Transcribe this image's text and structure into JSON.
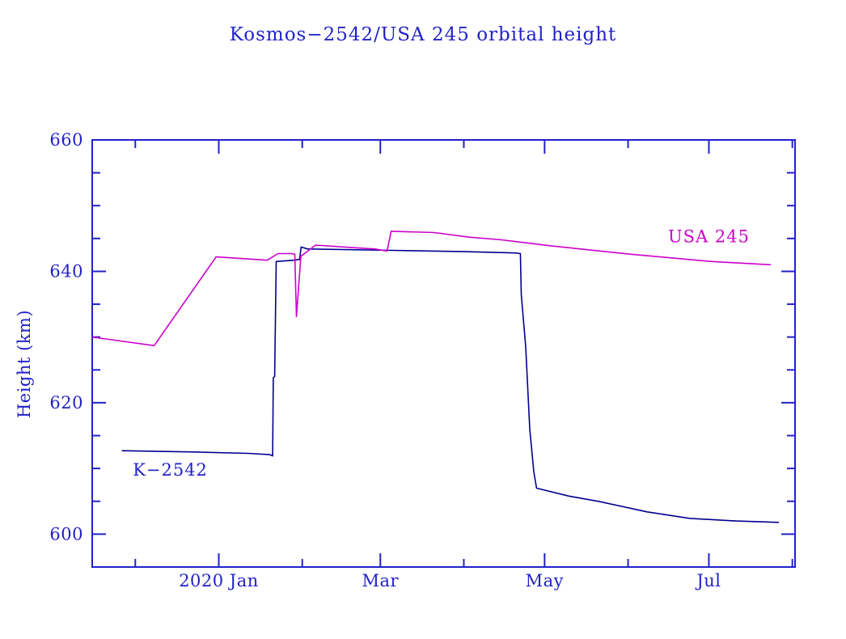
{
  "title": "Kosmos−2542/USA 245 orbital height",
  "colors": {
    "background": "#FFFFFF",
    "axis": "#2222C8",
    "tick_text": "#2222C8",
    "k2542_line": "#000090",
    "k2542_label": "#2222C8",
    "usa245_line": "#CC00CC",
    "usa245_label": "#CC00CC"
  },
  "y_axis_label": "Height (km)",
  "chart_data": {
    "type": "line",
    "title": "Kosmos−2542/USA 245 orbital height",
    "xlabel": "",
    "ylabel": "Height (km)",
    "xlim": [
      "2019-11-15",
      "2020-08-02"
    ],
    "ylim": [
      595,
      660
    ],
    "grid": false,
    "legend": "inline-annotations",
    "x_major_ticks": [
      {
        "date": "2020-01-01",
        "label": "2020 Jan"
      },
      {
        "date": "2020-03-01",
        "label": "Mar"
      },
      {
        "date": "2020-05-01",
        "label": "May"
      },
      {
        "date": "2020-07-01",
        "label": "Jul"
      }
    ],
    "x_minor_ticks": [
      "2019-12-01",
      "2020-02-01",
      "2020-04-01",
      "2020-06-01",
      "2020-08-01"
    ],
    "y_major_ticks": [
      {
        "value": 600,
        "label": "600"
      },
      {
        "value": 620,
        "label": "620"
      },
      {
        "value": 640,
        "label": "640"
      },
      {
        "value": 660,
        "label": "660"
      }
    ],
    "y_minor_ticks": [
      605,
      610,
      615,
      625,
      630,
      635,
      645,
      650,
      655
    ],
    "series": [
      {
        "name": "K-2542",
        "label": "K−2542",
        "color": "#000090",
        "points": [
          [
            "2019-11-26",
            612.7
          ],
          [
            "2019-12-23",
            612.5
          ],
          [
            "2020-01-12",
            612.3
          ],
          [
            "2020-01-20",
            612.1
          ],
          [
            "2020-01-21T00:00",
            611.9
          ],
          [
            "2020-01-21T06:00",
            623.8
          ],
          [
            "2020-01-21T18:00",
            624.0
          ],
          [
            "2020-01-22T08:00",
            641.5
          ],
          [
            "2020-01-29",
            641.7
          ],
          [
            "2020-01-31T00:00",
            641.8
          ],
          [
            "2020-01-31T14:00",
            643.7
          ],
          [
            "2020-02-03",
            643.4
          ],
          [
            "2020-03-05",
            643.2
          ],
          [
            "2020-04-01",
            643.0
          ],
          [
            "2020-04-20",
            642.8
          ],
          [
            "2020-04-22T00:00",
            642.7
          ],
          [
            "2020-04-22T08:00",
            636.5
          ],
          [
            "2020-04-24",
            628.5
          ],
          [
            "2020-04-25T12:00",
            616.0
          ],
          [
            "2020-04-27",
            609.5
          ],
          [
            "2020-04-28",
            607.0
          ],
          [
            "2020-05-10",
            605.8
          ],
          [
            "2020-05-21",
            605.0
          ],
          [
            "2020-06-08",
            603.4
          ],
          [
            "2020-06-24",
            602.4
          ],
          [
            "2020-07-11",
            602.0
          ],
          [
            "2020-07-27",
            601.8
          ]
        ]
      },
      {
        "name": "USA 245",
        "label": "USA 245",
        "color": "#CC00CC",
        "points": [
          [
            "2019-11-15",
            630.0
          ],
          [
            "2019-12-08",
            628.7
          ],
          [
            "2019-12-31",
            642.2
          ],
          [
            "2020-01-19",
            641.7
          ],
          [
            "2020-01-23",
            642.7
          ],
          [
            "2020-01-28",
            642.7
          ],
          [
            "2020-01-29T06:00",
            642.6
          ],
          [
            "2020-01-29T20:00",
            633.1
          ],
          [
            "2020-01-31T12:00",
            642.3
          ],
          [
            "2020-02-06",
            644.0
          ],
          [
            "2020-02-20",
            643.6
          ],
          [
            "2020-02-28",
            643.4
          ],
          [
            "2020-03-03T12:00",
            643.1
          ],
          [
            "2020-03-05",
            646.1
          ],
          [
            "2020-03-21",
            645.9
          ],
          [
            "2020-04-03",
            645.2
          ],
          [
            "2020-04-15",
            644.8
          ],
          [
            "2020-05-03",
            643.9
          ],
          [
            "2020-06-02",
            642.6
          ],
          [
            "2020-07-02",
            641.5
          ],
          [
            "2020-07-24",
            641.0
          ]
        ]
      }
    ],
    "annotations": [
      {
        "text": "K−2542",
        "color": "#2222C8",
        "anchor_date": "2019-12-14",
        "anchor_km": 609.8
      },
      {
        "text": "USA 245",
        "color": "#CC00CC",
        "anchor_date": "2020-07-01",
        "anchor_km": 645.3
      }
    ]
  }
}
